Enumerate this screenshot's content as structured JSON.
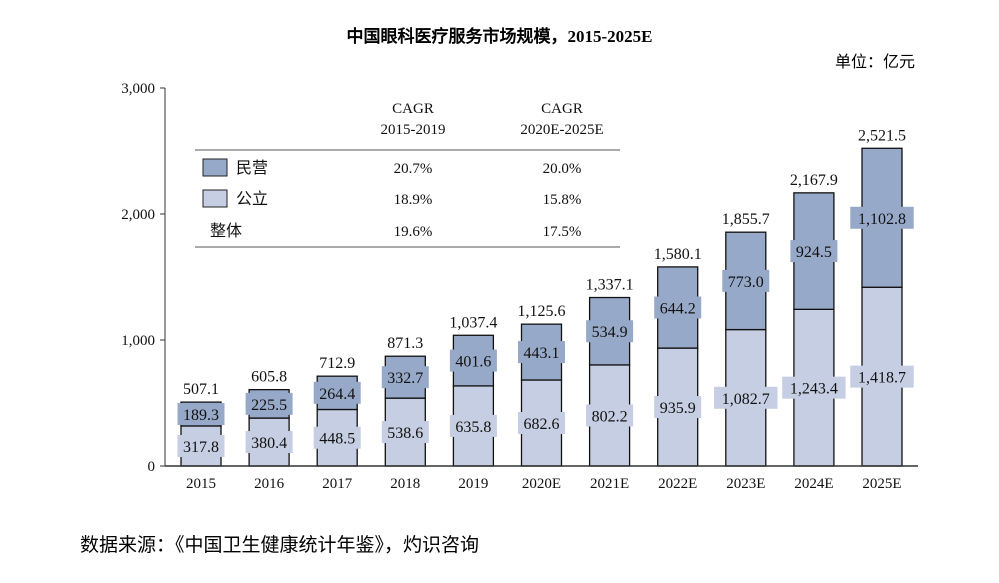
{
  "chart_data": {
    "type": "bar",
    "stacked": true,
    "title": "中国眼科医疗服务市场规模，2015-2025E",
    "unit": "单位：亿元",
    "source": "数据来源：《中国卫生健康统计年鉴》，灼识咨询",
    "categories": [
      "2015",
      "2016",
      "2017",
      "2018",
      "2019",
      "2020E",
      "2021E",
      "2022E",
      "2023E",
      "2024E",
      "2025E"
    ],
    "series": [
      {
        "name": "公立",
        "color": "#c5cee2",
        "values": [
          317.8,
          380.4,
          448.5,
          538.6,
          635.8,
          682.6,
          802.2,
          935.9,
          1082.7,
          1243.4,
          1418.7
        ],
        "labels": [
          "317.8",
          "380.4",
          "448.5",
          "538.6",
          "635.8",
          "682.6",
          "802.2",
          "935.9",
          "1,082.7",
          "1,243.4",
          "1,418.7"
        ]
      },
      {
        "name": "民营",
        "color": "#97a9c9",
        "values": [
          189.3,
          225.5,
          264.4,
          332.7,
          401.6,
          443.1,
          534.9,
          644.2,
          773.0,
          924.5,
          1102.8
        ],
        "labels": [
          "189.3",
          "225.5",
          "264.4",
          "332.7",
          "401.6",
          "443.1",
          "534.9",
          "644.2",
          "773.0",
          "924.5",
          "1,102.8"
        ]
      }
    ],
    "totals": [
      "507.1",
      "605.8",
      "712.9",
      "871.3",
      "1,037.4",
      "1,125.6",
      "1,337.1",
      "1,580.1",
      "1,855.7",
      "2,167.9",
      "2,521.5"
    ],
    "ylim": [
      0,
      3000
    ],
    "yticks": [
      0,
      1000,
      2000,
      3000
    ],
    "ytick_labels": [
      "0",
      "1,000",
      "2,000",
      "3,000"
    ],
    "cagr_table": {
      "headers": [
        [
          "CAGR",
          "2015-2019"
        ],
        [
          "CAGR",
          "2020E-2025E"
        ]
      ],
      "rows": [
        {
          "label": "民营",
          "swatch": "#97a9c9",
          "values": [
            "20.7%",
            "20.0%"
          ]
        },
        {
          "label": "公立",
          "swatch": "#c5cee2",
          "values": [
            "18.9%",
            "15.8%"
          ]
        },
        {
          "label": "整体",
          "values": [
            "19.6%",
            "17.5%"
          ]
        }
      ]
    }
  }
}
